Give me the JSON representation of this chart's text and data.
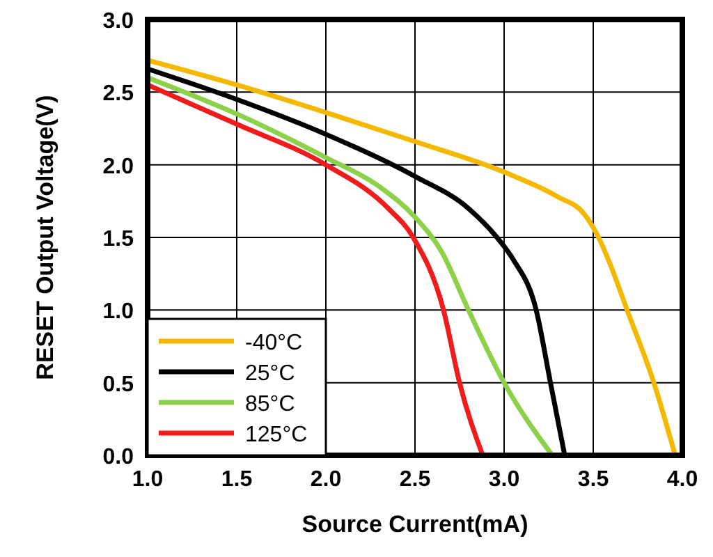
{
  "chart_data": {
    "type": "line",
    "xlabel": "Source Current(mA)",
    "ylabel": "RESET Output Voltage(V)",
    "xlim": [
      1.0,
      4.0
    ],
    "ylim": [
      0.0,
      3.0
    ],
    "xticks": [
      {
        "value": 1,
        "label": "1.0"
      },
      1.5,
      {
        "value": 2,
        "label": "2.0"
      },
      2.5,
      {
        "value": 3,
        "label": "3.0"
      },
      3.5,
      {
        "value": 4,
        "label": "4.0"
      }
    ],
    "yticks": [
      {
        "value": 0,
        "label": "0.0"
      },
      0.5,
      {
        "value": 1,
        "label": "1.0"
      },
      1.5,
      {
        "value": 2,
        "label": "2.0"
      },
      2.5,
      {
        "value": 3,
        "label": "3.0"
      }
    ],
    "grid": true,
    "legend": "bottom left",
    "marker": "none",
    "line_style": "solid",
    "series": [
      {
        "name": "-40°C",
        "color": "#f5b800",
        "x": [
          1.0,
          1.5,
          2.0,
          2.5,
          3.0,
          3.3,
          3.45,
          3.53,
          3.6,
          3.69,
          3.84,
          3.96
        ],
        "values": [
          2.72,
          2.55,
          2.36,
          2.16,
          1.95,
          1.78,
          1.66,
          1.5,
          1.3,
          1.0,
          0.5,
          0.0
        ]
      },
      {
        "name": "25°C",
        "color": "#000000",
        "x": [
          1.0,
          1.5,
          2.0,
          2.5,
          2.8,
          2.96,
          3.05,
          3.18,
          3.26,
          3.34
        ],
        "values": [
          2.66,
          2.45,
          2.21,
          1.92,
          1.7,
          1.5,
          1.35,
          1.0,
          0.5,
          0.0
        ]
      },
      {
        "name": "85°C",
        "color": "#8dd04a",
        "x": [
          1.0,
          1.5,
          2.0,
          2.3,
          2.5,
          2.65,
          2.8,
          3.0,
          3.27
        ],
        "values": [
          2.6,
          2.35,
          2.05,
          1.85,
          1.64,
          1.4,
          1.0,
          0.5,
          0.0
        ]
      },
      {
        "name": "125°C",
        "color": "#ee1c1c",
        "x": [
          1.0,
          1.5,
          2.0,
          2.35,
          2.49,
          2.66,
          2.75,
          2.88
        ],
        "values": [
          2.55,
          2.28,
          2.0,
          1.7,
          1.5,
          1.0,
          0.5,
          0.0
        ]
      }
    ]
  }
}
